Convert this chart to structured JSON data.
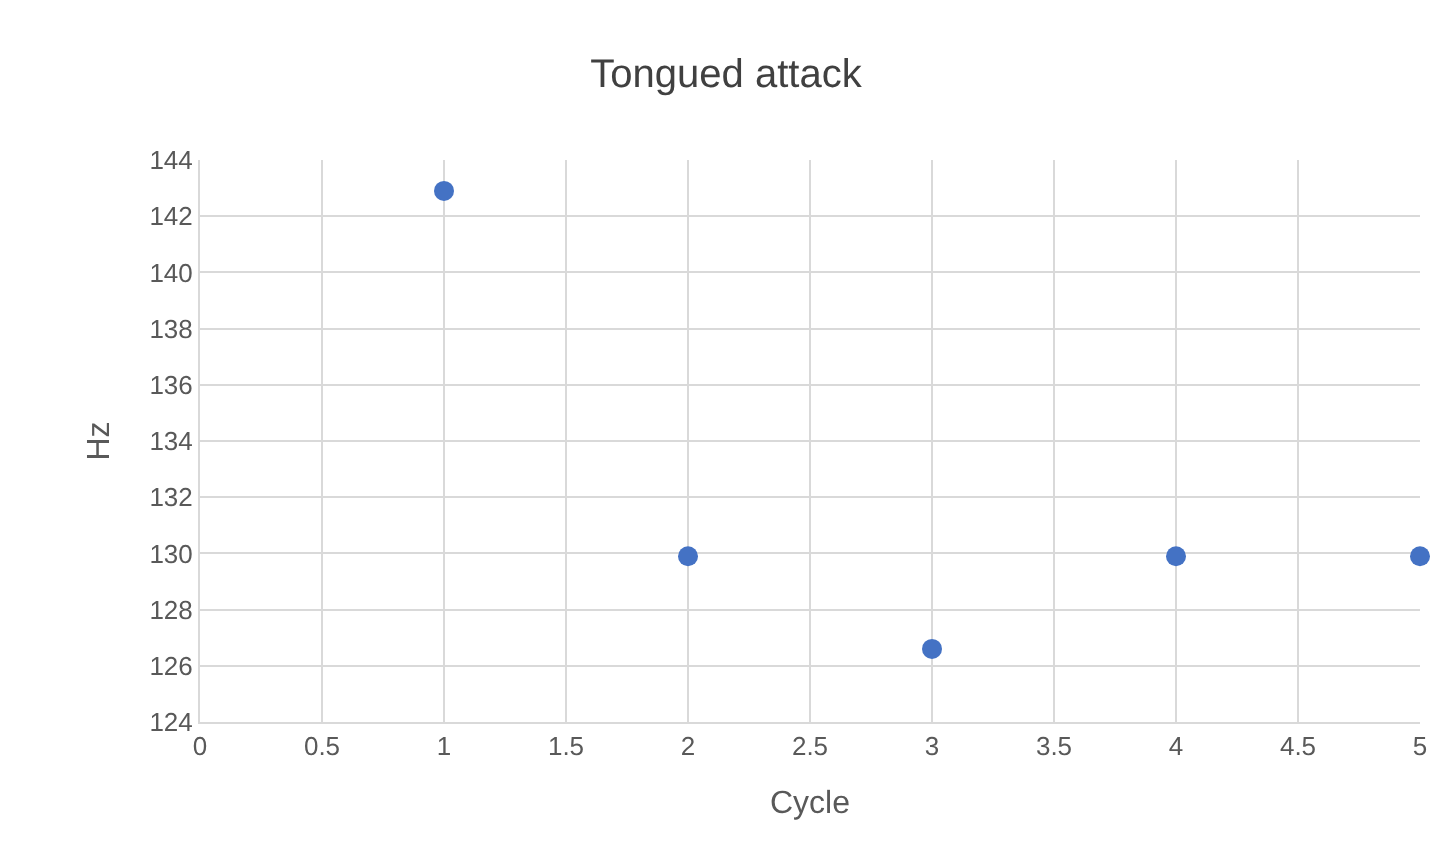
{
  "chart_data": {
    "type": "scatter",
    "title": "Tongued attack",
    "xlabel": "Cycle",
    "ylabel": "Hz",
    "x": [
      1,
      2,
      3,
      4,
      5
    ],
    "series": [
      {
        "color": "#4472c4",
        "values": [
          142.9,
          129.9,
          126.6,
          129.9,
          129.9
        ]
      }
    ],
    "xlim": [
      0,
      5
    ],
    "xticks": [
      0,
      0.5,
      1,
      1.5,
      2,
      2.5,
      3,
      3.5,
      4,
      4.5,
      5
    ],
    "ylim": [
      124,
      144
    ],
    "yticks": [
      124,
      126,
      128,
      130,
      132,
      134,
      136,
      138,
      140,
      142,
      144
    ],
    "grid": true,
    "legend": false,
    "marker": "circle"
  }
}
